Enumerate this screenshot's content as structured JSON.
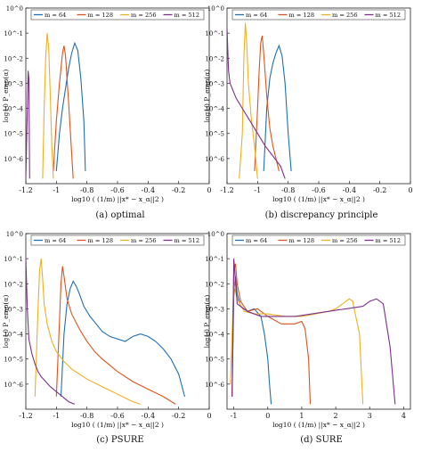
{
  "figure": {
    "captions": [
      "(a)  optimal",
      "(b)  discrepancy principle",
      "(c)  PSURE",
      "(d)  SURE"
    ]
  },
  "chart_data": [
    {
      "type": "line",
      "subplot": "(a) optimal",
      "xlabel": "log10 ( (1/m) ||x* − x_α||2 )",
      "ylabel": "log10 P_emp(α)",
      "xlim": [
        -1.2,
        0
      ],
      "ylim_log10": [
        -7,
        0
      ],
      "x_ticks": [
        "-1.2",
        "-1",
        "-0.8",
        "-0.6",
        "-0.4",
        "-0.2",
        "0"
      ],
      "y_ticks": [
        "10^0",
        "10^-1",
        "10^-2",
        "10^-3",
        "10^-4",
        "10^-5",
        "10^-6"
      ],
      "legend": {
        "position": "top",
        "entries": [
          "m = 64",
          "m = 128",
          "m = 256",
          "m = 512"
        ]
      },
      "series": [
        {
          "name": "m = 64",
          "color": "#1f6fb2",
          "x": [
            -1.0,
            -0.98,
            -0.96,
            -0.94,
            -0.92,
            -0.9,
            -0.88,
            -0.86,
            -0.84,
            -0.82,
            -0.81
          ],
          "y_log10": [
            -6.5,
            -5.0,
            -4.0,
            -3.2,
            -2.4,
            -1.8,
            -1.4,
            -1.7,
            -2.8,
            -4.5,
            -6.5
          ]
        },
        {
          "name": "m = 128",
          "color": "#d9541f",
          "x": [
            -1.02,
            -1.0,
            -0.98,
            -0.96,
            -0.95,
            -0.94,
            -0.92,
            -0.9,
            -0.89
          ],
          "y_log10": [
            -6.5,
            -4.5,
            -3.0,
            -1.8,
            -1.5,
            -1.9,
            -3.8,
            -5.8,
            -6.8
          ]
        },
        {
          "name": "m = 256",
          "color": "#edb120",
          "x": [
            -1.09,
            -1.08,
            -1.07,
            -1.06,
            -1.05,
            -1.04,
            -1.03,
            -1.02
          ],
          "y_log10": [
            -6.8,
            -4.0,
            -2.0,
            -1.0,
            -1.6,
            -3.5,
            -5.5,
            -6.8
          ]
        },
        {
          "name": "m = 512",
          "color": "#7e2f8e",
          "x": [
            -1.2,
            -1.19,
            -1.185,
            -1.18,
            -1.175
          ],
          "y_log10": [
            -6.8,
            -4.0,
            -2.5,
            -2.8,
            -6.8
          ]
        }
      ]
    },
    {
      "type": "line",
      "subplot": "(b) discrepancy principle",
      "xlabel": "log10 ( (1/m) ||x* − x_α||2 )",
      "ylabel": "log10 P_emp(α)",
      "xlim": [
        -1.2,
        0
      ],
      "ylim_log10": [
        -7,
        0
      ],
      "x_ticks": [
        "-1.2",
        "-1",
        "-0.8",
        "-0.6",
        "-0.4",
        "-0.2",
        "0"
      ],
      "y_ticks": [
        "10^0",
        "10^-1",
        "10^-2",
        "10^-3",
        "10^-4",
        "10^-5",
        "10^-6"
      ],
      "legend": {
        "position": "top",
        "entries": [
          "m = 64",
          "m = 128",
          "m = 256",
          "m = 512"
        ]
      },
      "series": [
        {
          "name": "m = 64",
          "color": "#1f6fb2",
          "x": [
            -0.96,
            -0.94,
            -0.92,
            -0.9,
            -0.88,
            -0.86,
            -0.84,
            -0.82,
            -0.8,
            -0.78
          ],
          "y_log10": [
            -6.5,
            -4.0,
            -2.8,
            -2.2,
            -1.8,
            -1.5,
            -1.9,
            -3.0,
            -5.0,
            -6.5
          ]
        },
        {
          "name": "m = 128",
          "color": "#d9541f",
          "x": [
            -1.02,
            -1.0,
            -0.99,
            -0.98,
            -0.97,
            -0.96,
            -0.94,
            -0.92,
            -0.9,
            -0.86
          ],
          "y_log10": [
            -6.5,
            -4.0,
            -2.5,
            -1.4,
            -1.1,
            -1.8,
            -3.5,
            -4.8,
            -5.5,
            -6.5
          ]
        },
        {
          "name": "m = 256",
          "color": "#edb120",
          "x": [
            -1.12,
            -1.1,
            -1.09,
            -1.08,
            -1.07,
            -1.06,
            -1.04,
            -1.02,
            -1.0
          ],
          "y_log10": [
            -6.8,
            -5.0,
            -2.0,
            -0.6,
            -1.5,
            -3.0,
            -4.5,
            -5.5,
            -6.8
          ]
        },
        {
          "name": "m = 512",
          "color": "#7e2f8e",
          "x": [
            -1.2,
            -1.19,
            -1.18,
            -1.16,
            -1.14,
            -1.1,
            -1.05,
            -1.0,
            -0.95,
            -0.9,
            -0.85,
            -0.82
          ],
          "y_log10": [
            -0.8,
            -2.5,
            -3.0,
            -3.3,
            -3.6,
            -4.0,
            -4.5,
            -5.0,
            -5.5,
            -5.9,
            -6.3,
            -6.8
          ]
        }
      ]
    },
    {
      "type": "line",
      "subplot": "(c) PSURE",
      "xlabel": "log10 ( (1/m) ||x* − x_α||2 )",
      "ylabel": "log10 P_emp(α)",
      "xlim": [
        -1.2,
        0
      ],
      "ylim_log10": [
        -7,
        0
      ],
      "x_ticks": [
        "-1.2",
        "-1",
        "-0.8",
        "-0.6",
        "-0.4",
        "-0.2",
        "0"
      ],
      "y_ticks": [
        "10^0",
        "10^-1",
        "10^-2",
        "10^-3",
        "10^-4",
        "10^-5",
        "10^-6"
      ],
      "legend": {
        "position": "top",
        "entries": [
          "m = 64",
          "m = 128",
          "m = 256",
          "m = 512"
        ]
      },
      "series": [
        {
          "name": "m = 64",
          "color": "#1f6fb2",
          "x": [
            -0.97,
            -0.95,
            -0.93,
            -0.91,
            -0.89,
            -0.87,
            -0.85,
            -0.82,
            -0.78,
            -0.74,
            -0.7,
            -0.65,
            -0.6,
            -0.55,
            -0.5,
            -0.45,
            -0.4,
            -0.35,
            -0.3,
            -0.25,
            -0.2,
            -0.16
          ],
          "y_log10": [
            -6.5,
            -4.0,
            -2.8,
            -2.2,
            -1.9,
            -2.1,
            -2.4,
            -2.9,
            -3.3,
            -3.6,
            -3.9,
            -4.1,
            -4.2,
            -4.3,
            -4.1,
            -4.0,
            -4.1,
            -4.3,
            -4.6,
            -5.0,
            -5.6,
            -6.5
          ]
        },
        {
          "name": "m = 128",
          "color": "#d9541f",
          "x": [
            -1.0,
            -0.98,
            -0.97,
            -0.96,
            -0.95,
            -0.93,
            -0.9,
            -0.85,
            -0.8,
            -0.75,
            -0.7,
            -0.6,
            -0.5,
            -0.4,
            -0.3,
            -0.22
          ],
          "y_log10": [
            -6.5,
            -3.5,
            -2.0,
            -1.3,
            -1.7,
            -2.6,
            -3.2,
            -3.8,
            -4.3,
            -4.7,
            -5.0,
            -5.5,
            -5.9,
            -6.2,
            -6.5,
            -6.8
          ]
        },
        {
          "name": "m = 256",
          "color": "#edb120",
          "x": [
            -1.14,
            -1.12,
            -1.11,
            -1.1,
            -1.09,
            -1.08,
            -1.06,
            -1.03,
            -1.0,
            -0.95,
            -0.9,
            -0.8,
            -0.7,
            -0.6,
            -0.5,
            -0.45
          ],
          "y_log10": [
            -6.5,
            -3.0,
            -1.5,
            -1.0,
            -1.8,
            -2.8,
            -3.6,
            -4.3,
            -4.7,
            -5.1,
            -5.4,
            -5.8,
            -6.1,
            -6.4,
            -6.7,
            -6.8
          ]
        },
        {
          "name": "m = 512",
          "color": "#7e2f8e",
          "x": [
            -1.2,
            -1.19,
            -1.18,
            -1.16,
            -1.14,
            -1.12,
            -1.1,
            -1.07,
            -1.04,
            -1.0,
            -0.96,
            -0.92,
            -0.88
          ],
          "y_log10": [
            -1.0,
            -3.0,
            -4.2,
            -4.8,
            -5.2,
            -5.5,
            -5.7,
            -5.9,
            -6.1,
            -6.3,
            -6.5,
            -6.7,
            -6.8
          ]
        }
      ]
    },
    {
      "type": "line",
      "subplot": "(d) SURE",
      "xlabel": "log10 ( (1/m) ||x* − x_α||2 )",
      "ylabel": "log10 P_emp(α)",
      "xlim": [
        -1.2,
        4.2
      ],
      "ylim_log10": [
        -7,
        0
      ],
      "x_ticks": [
        "-1",
        "0",
        "1",
        "2",
        "3",
        "4"
      ],
      "y_ticks": [
        "10^0",
        "10^-1",
        "10^-2",
        "10^-3",
        "10^-4",
        "10^-5",
        "10^-6"
      ],
      "legend": {
        "position": "top",
        "entries": [
          "m = 64",
          "m = 128",
          "m = 256",
          "m = 512"
        ]
      },
      "series": [
        {
          "name": "m = 64",
          "color": "#1f6fb2",
          "x": [
            -1.05,
            -1.0,
            -0.95,
            -0.9,
            -0.8,
            -0.6,
            -0.4,
            -0.2,
            -0.1,
            0.0,
            0.05,
            0.1
          ],
          "y_log10": [
            -6.5,
            -2.5,
            -1.7,
            -2.4,
            -2.9,
            -3.1,
            -3.0,
            -3.3,
            -4.0,
            -5.0,
            -6.0,
            -6.8
          ]
        },
        {
          "name": "m = 128",
          "color": "#d9541f",
          "x": [
            -1.05,
            -1.0,
            -0.95,
            -0.9,
            -0.8,
            -0.6,
            -0.3,
            0.0,
            0.4,
            0.8,
            1.0,
            1.1,
            1.2,
            1.25
          ],
          "y_log10": [
            -6.5,
            -1.5,
            -1.2,
            -2.0,
            -2.7,
            -3.1,
            -3.0,
            -3.3,
            -3.6,
            -3.6,
            -3.5,
            -3.8,
            -5.0,
            -6.8
          ]
        },
        {
          "name": "m = 256",
          "color": "#edb120",
          "x": [
            -1.1,
            -1.0,
            -0.9,
            -0.7,
            -0.4,
            0.0,
            0.5,
            1.0,
            1.4,
            1.8,
            2.0,
            2.2,
            2.4,
            2.5,
            2.7,
            2.8
          ],
          "y_log10": [
            -6.0,
            -2.0,
            -2.6,
            -3.1,
            -3.2,
            -3.2,
            -3.3,
            -3.3,
            -3.2,
            -3.1,
            -3.0,
            -2.8,
            -2.6,
            -2.7,
            -4.0,
            -6.8
          ]
        },
        {
          "name": "m = 512",
          "color": "#7e2f8e",
          "x": [
            -1.05,
            -1.0,
            -0.9,
            -0.6,
            -0.2,
            0.3,
            0.8,
            1.3,
            1.8,
            2.3,
            2.8,
            3.0,
            3.2,
            3.4,
            3.6,
            3.75
          ],
          "y_log10": [
            -6.5,
            -1.0,
            -2.8,
            -3.1,
            -3.3,
            -3.3,
            -3.3,
            -3.2,
            -3.1,
            -3.0,
            -2.9,
            -2.7,
            -2.6,
            -2.8,
            -4.5,
            -6.8
          ]
        }
      ]
    }
  ]
}
